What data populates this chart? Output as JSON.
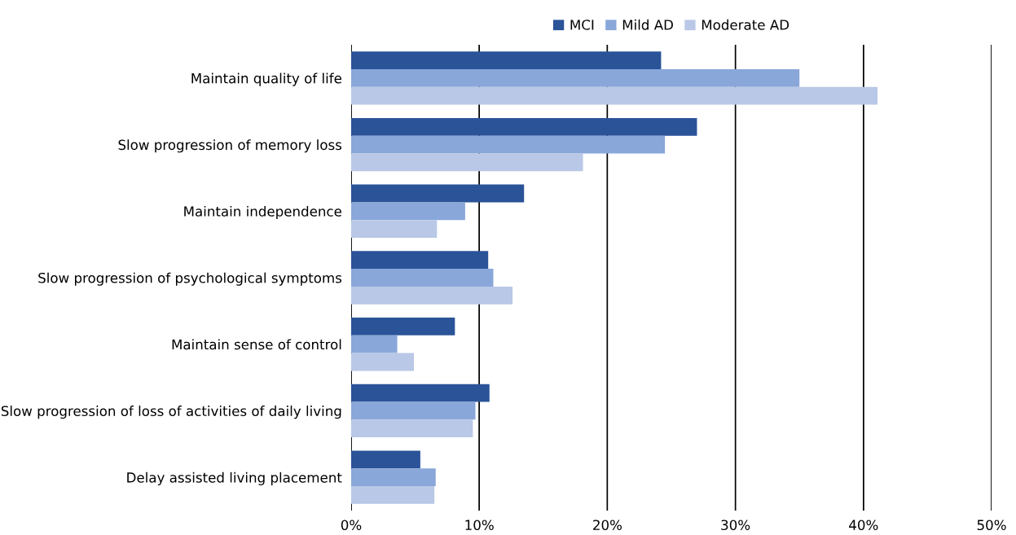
{
  "chart_data": {
    "type": "bar",
    "orientation": "horizontal",
    "categories": [
      "Maintain quality of life",
      "Slow progression of memory loss",
      "Maintain independence",
      "Slow progression of psychological symptoms",
      "Maintain sense of control",
      "Slow progression of loss of activities of daily living",
      "Delay assisted living placement"
    ],
    "series": [
      {
        "name": "MCI",
        "color": "#2a5398",
        "values": [
          24.2,
          27.0,
          13.5,
          10.7,
          8.1,
          10.8,
          5.4
        ]
      },
      {
        "name": "Mild AD",
        "color": "#89a7d9",
        "values": [
          35.0,
          24.5,
          8.9,
          11.1,
          3.6,
          9.7,
          6.6
        ]
      },
      {
        "name": "Moderate AD",
        "color": "#b9c8e6",
        "values": [
          41.1,
          18.1,
          6.7,
          12.6,
          4.9,
          9.5,
          6.5
        ]
      }
    ],
    "xlim": [
      0,
      50
    ],
    "xticks": [
      {
        "value": 0,
        "label": "0%"
      },
      {
        "value": 10,
        "label": "10%"
      },
      {
        "value": 20,
        "label": "20%"
      },
      {
        "value": 30,
        "label": "30%"
      },
      {
        "value": 40,
        "label": "40%"
      },
      {
        "value": 50,
        "label": "50%"
      }
    ],
    "grid": "x",
    "legend": "top"
  }
}
